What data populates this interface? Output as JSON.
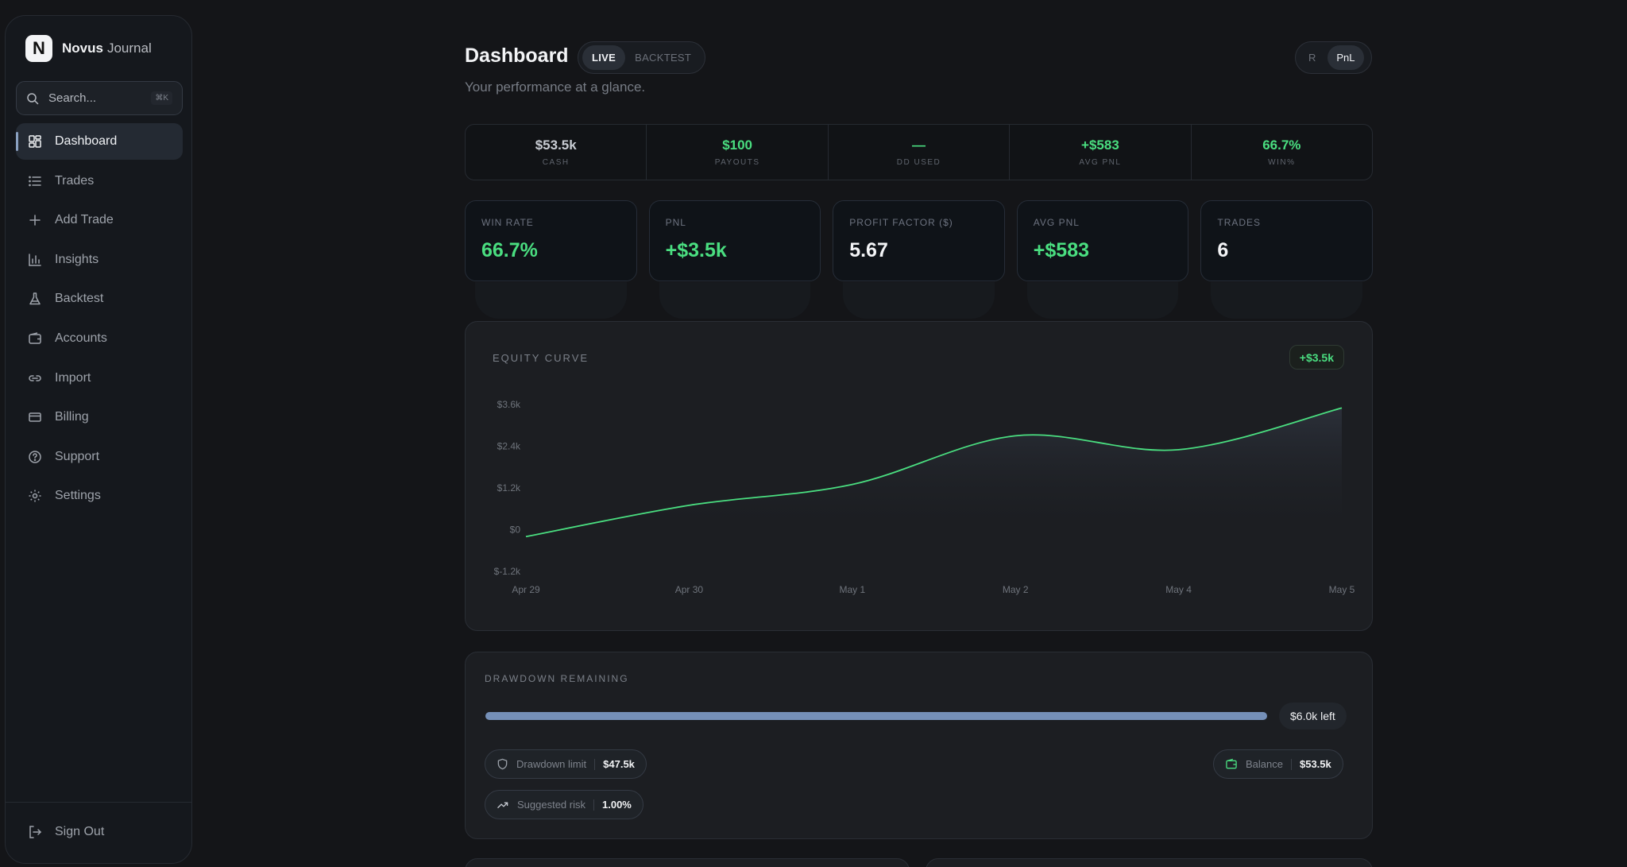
{
  "sidebar": {
    "brand_name": "Novus",
    "brand_suffix": "Journal",
    "brand_logo_letter": "N",
    "search_placeholder": "Search...",
    "search_shortcut": "⌘K",
    "items": [
      {
        "label": "Dashboard",
        "icon": "dashboard-icon",
        "active": true
      },
      {
        "label": "Trades",
        "icon": "list-icon"
      },
      {
        "label": "Add Trade",
        "icon": "plus-icon"
      },
      {
        "label": "Insights",
        "icon": "bar-chart-icon"
      },
      {
        "label": "Backtest",
        "icon": "flask-icon"
      },
      {
        "label": "Accounts",
        "icon": "wallet-icon"
      },
      {
        "label": "Import",
        "icon": "link-icon"
      },
      {
        "label": "Billing",
        "icon": "credit-card-icon"
      },
      {
        "label": "Support",
        "icon": "help-circle-icon"
      },
      {
        "label": "Settings",
        "icon": "gear-icon"
      }
    ],
    "sign_out": "Sign Out"
  },
  "header": {
    "title": "Dashboard",
    "subtitle": "Your performance at a glance.",
    "mode_tabs": [
      "LIVE",
      "BACKTEST"
    ],
    "mode_active": "LIVE",
    "unit_tabs": [
      "R",
      "PnL"
    ],
    "unit_active": "PnL"
  },
  "summary": [
    {
      "value": "$53.5k",
      "label": "CASH",
      "color": "neutral"
    },
    {
      "value": "$100",
      "label": "PAYOUTS",
      "color": "green"
    },
    {
      "value": "—",
      "label": "DD USED",
      "color": "green"
    },
    {
      "value": "+$583",
      "label": "AVG PNL",
      "color": "green"
    },
    {
      "value": "66.7%",
      "label": "WIN%",
      "color": "green"
    }
  ],
  "kpis": [
    {
      "label": "WIN RATE",
      "value": "66.7%",
      "color": "green"
    },
    {
      "label": "PNL",
      "value": "+$3.5k",
      "color": "green"
    },
    {
      "label": "PROFIT FACTOR ($)",
      "value": "5.67",
      "color": "white"
    },
    {
      "label": "AVG PNL",
      "value": "+$583",
      "color": "green"
    },
    {
      "label": "TRADES",
      "value": "6",
      "color": "white"
    }
  ],
  "equity": {
    "title": "EQUITY CURVE",
    "badge": "+$3.5k"
  },
  "chart_data": {
    "type": "line",
    "title": "EQUITY CURVE",
    "x": [
      "Apr 29",
      "Apr 30",
      "May 1",
      "May 2",
      "May 4",
      "May 5"
    ],
    "series": [
      {
        "values": [
          -200,
          700,
          1300,
          2700,
          2300,
          3500
        ]
      }
    ],
    "y_ticks": [
      "$3.6k",
      "$2.4k",
      "$1.2k",
      "$0",
      "$-1.2k"
    ],
    "ylim": [
      -1200,
      3600
    ],
    "line_color": "#4ade80",
    "grid": false
  },
  "drawdown": {
    "title": "DRAWDOWN REMAINING",
    "remaining_fraction": 1.0,
    "remaining_label": "$6.0k left",
    "limit_label": "Drawdown limit",
    "limit_value": "$47.5k",
    "risk_label": "Suggested risk",
    "risk_value": "1.00%",
    "balance_label": "Balance",
    "balance_value": "$53.5k"
  },
  "colors": {
    "accent_green": "#4ade80",
    "bar_fill": "#7590b8"
  }
}
